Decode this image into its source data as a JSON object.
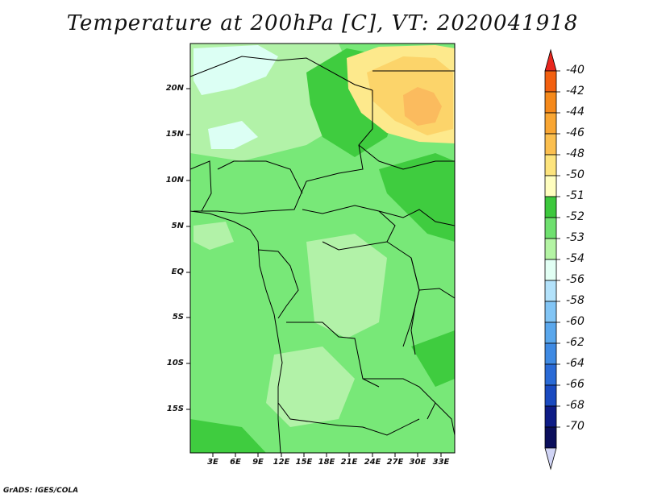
{
  "title": "Temperature at 200hPa [C], VT: 2020041918",
  "footer": "GrADS: IGES/COLA",
  "map": {
    "lat_labels": [
      "20N",
      "15N",
      "10N",
      "5N",
      "EQ",
      "5S",
      "10S",
      "15S"
    ],
    "lon_labels": [
      "3E",
      "6E",
      "9E",
      "12E",
      "15E",
      "18E",
      "21E",
      "24E",
      "27E",
      "30E",
      "33E"
    ],
    "colors": {
      "base": "#78e878",
      "light": "#b2f2a8",
      "dark": "#3fcc3f",
      "palest": "#dcfff4",
      "yellow_light": "#fde98c",
      "yellow": "#fcd46a",
      "orange": "#fbbb5e"
    }
  },
  "colorbar": {
    "labels": [
      "-40",
      "-42",
      "-44",
      "-46",
      "-48",
      "-50",
      "-51",
      "-52",
      "-53",
      "-54",
      "-56",
      "-58",
      "-60",
      "-62",
      "-64",
      "-66",
      "-68",
      "-70"
    ],
    "colors": [
      "#e8261e",
      "#f26010",
      "#f5891b",
      "#f9a633",
      "#fbbf4f",
      "#fde47d",
      "#fffebf",
      "#3dc83d",
      "#6fe06f",
      "#b4f4a4",
      "#e2fff4",
      "#b3e2fb",
      "#82c5f5",
      "#5aa7ec",
      "#3f8ae3",
      "#2a6ad6",
      "#1a4ac0",
      "#0e1c86",
      "#0b0f5c",
      "#d0d4f5"
    ]
  }
}
